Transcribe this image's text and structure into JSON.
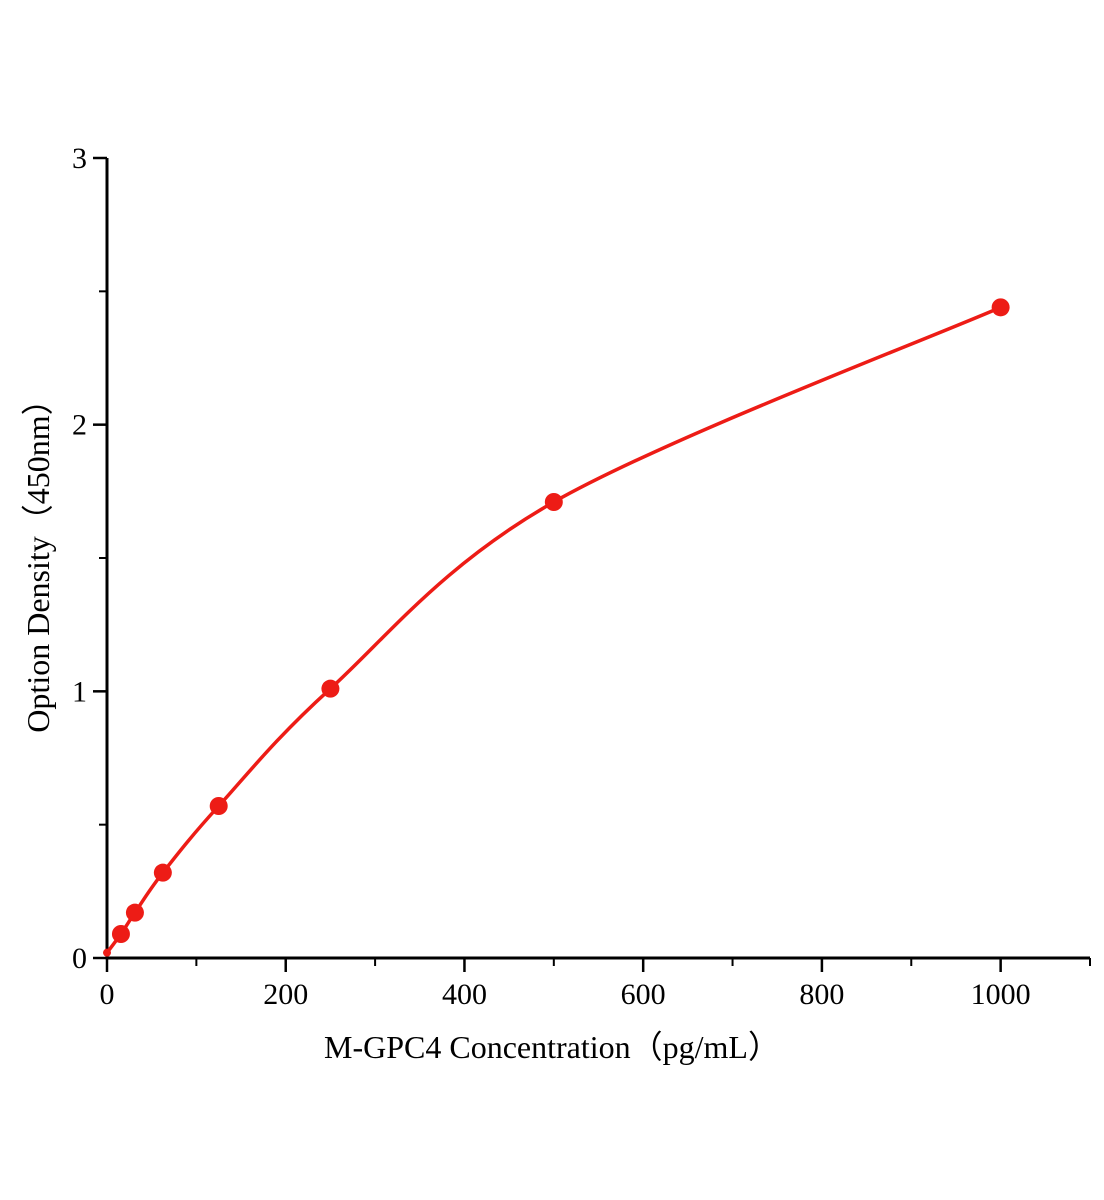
{
  "chart_data": {
    "type": "scatter",
    "title": "",
    "xlabel": "M-GPC4 Concentration（pg/mL）",
    "ylabel": "Option Density（450nm）",
    "x": [
      0,
      15.6,
      31.25,
      62.5,
      125,
      250,
      500,
      1000
    ],
    "y": [
      0.02,
      0.09,
      0.17,
      0.32,
      0.57,
      1.01,
      1.71,
      2.44
    ],
    "xlim": [
      0,
      1100
    ],
    "ylim": [
      0,
      3
    ],
    "x_major_ticks": [
      0,
      200,
      400,
      600,
      800,
      1000
    ],
    "x_minor_ticks": [
      100,
      300,
      500,
      700,
      900,
      1100
    ],
    "y_major_ticks": [
      0,
      1,
      2,
      3
    ],
    "y_minor_ticks": [
      0.5,
      1.5,
      2.5
    ],
    "line_color": "#ed1c16",
    "marker_color": "#ed1c16",
    "axis_color": "#000000",
    "marker_radius": 9,
    "grid": false,
    "legend": null,
    "curve_type": "smooth-4PL-standard-curve"
  }
}
